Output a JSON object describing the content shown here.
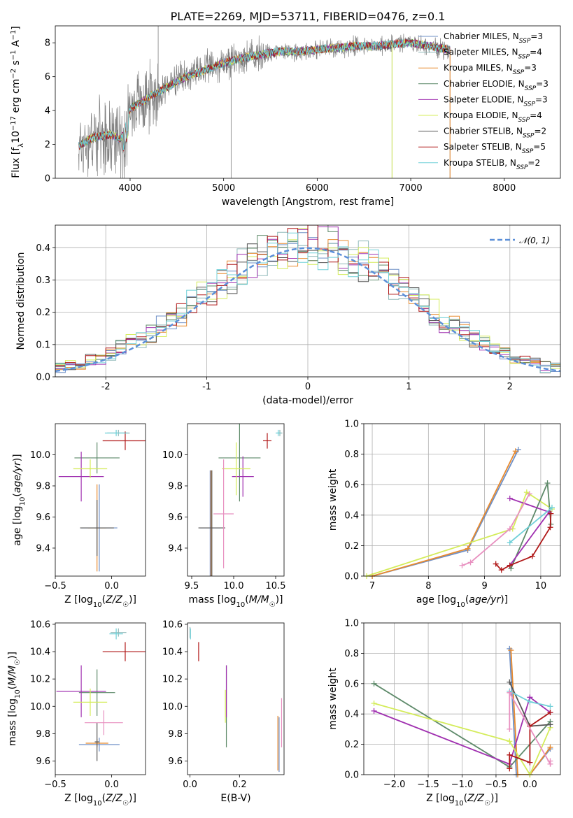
{
  "figure": {
    "title": "PLATE=2269, MJD=53711, FIBERID=0476, z=0.1"
  },
  "models": [
    {
      "name": "Chabrier MILES",
      "nssp": "3",
      "color": "#6e8fc6"
    },
    {
      "name": "Salpeter MILES",
      "nssp": "4",
      "color": "#8fb8b8"
    },
    {
      "name": "Kroupa MILES",
      "nssp": "3",
      "color": "#e88a2e"
    },
    {
      "name": "Chabrier ELODIE",
      "nssp": "3",
      "color": "#5e8a6a"
    },
    {
      "name": "Salpeter ELODIE",
      "nssp": "3",
      "color": "#a030b0"
    },
    {
      "name": "Kroupa ELODIE",
      "nssp": "4",
      "color": "#d4ec5a"
    },
    {
      "name": "Chabrier STELIB",
      "nssp": "2",
      "color": "#555555"
    },
    {
      "name": "Salpeter STELIB",
      "nssp": "5",
      "color": "#b01818"
    },
    {
      "name": "Kroupa STELIB",
      "nssp": "2",
      "color": "#70d0d8"
    }
  ],
  "chart_data": [
    {
      "id": "spectrum",
      "type": "line",
      "xlabel": "wavelength [Angstrom, rest frame]",
      "ylabel": "Flux [f_λ10^-17 erg cm^-2 s^-1 A^-1]",
      "xlim": [
        3200,
        8600
      ],
      "ylim": [
        0,
        9
      ],
      "xticks": [
        4000,
        5000,
        6000,
        7000,
        8000
      ],
      "yticks": [
        0,
        2,
        4,
        6,
        8
      ],
      "data_color": "#808080",
      "continuum": {
        "x": [
          3450,
          3600,
          3800,
          3900,
          3950,
          4000,
          4200,
          4400,
          4600,
          4800,
          5000,
          5200,
          5400,
          5600,
          5800,
          6000,
          6200,
          6400,
          6600,
          6800,
          7000,
          7200,
          7300,
          7400
        ],
        "y": [
          1.9,
          2.4,
          2.6,
          2.3,
          3.0,
          4.1,
          4.8,
          5.4,
          6.0,
          6.4,
          6.8,
          7.1,
          7.3,
          7.5,
          7.5,
          7.6,
          7.7,
          7.8,
          7.8,
          7.9,
          8.0,
          7.8,
          7.7,
          7.6
        ]
      },
      "legend_position": "upper right"
    },
    {
      "id": "residuals",
      "type": "histogram",
      "xlabel": "(data-model)/error",
      "ylabel": "Normed distribution",
      "xlim": [
        -2.5,
        2.5
      ],
      "ylim": [
        0,
        0.47
      ],
      "xticks": [
        -2,
        -1,
        0,
        1,
        2
      ],
      "yticks": [
        0.0,
        0.1,
        0.2,
        0.3,
        0.4
      ],
      "bin_width": 0.1,
      "reference_curve": {
        "name": "𝒩(0, 1)",
        "color": "#5b8fd8",
        "mean": 0,
        "sigma": 1
      },
      "legend_position": "upper right",
      "grid": true
    },
    {
      "id": "age-vs-Z",
      "type": "errorbar",
      "xlabel": "Z [log10(Z/Z☉)]",
      "ylabel": "age [log10(age/yr)]",
      "xlim": [
        -0.5,
        0.3
      ],
      "ylim": [
        9.22,
        10.2
      ],
      "xticks": [
        -0.5,
        0.0
      ],
      "yticks": [
        9.4,
        9.6,
        9.8,
        10.0
      ],
      "points": [
        {
          "model": 0,
          "x": -0.11,
          "y": 9.53,
          "xerr": 0.16,
          "yerr": 0.28
        },
        {
          "model": 1,
          "x": 0.06,
          "y": 10.14,
          "xerr": 0.1,
          "yerr": 0.02
        },
        {
          "model": 2,
          "x": -0.13,
          "y": 9.53,
          "xerr": 0.08,
          "yerr": 0.28
        },
        {
          "model": 3,
          "x": -0.13,
          "y": 9.98,
          "xerr": 0.2,
          "yerr": 0.1
        },
        {
          "model": 4,
          "x": -0.27,
          "y": 9.86,
          "xerr": 0.2,
          "yerr": 0.16
        },
        {
          "model": 5,
          "x": -0.19,
          "y": 9.91,
          "xerr": 0.15,
          "yerr": 0.06
        },
        {
          "model": 6,
          "x": -0.13,
          "y": 9.53,
          "xerr": 0.15,
          "yerr": 0.18
        },
        {
          "model": 7,
          "x": 0.12,
          "y": 10.09,
          "xerr": 0.2,
          "yerr": 0.06
        },
        {
          "model": 8,
          "x": 0.04,
          "y": 10.14,
          "xerr": 0.1,
          "yerr": 0.02
        }
      ]
    },
    {
      "id": "age-vs-mass",
      "type": "errorbar",
      "xlabel": "mass [log10(M/M☉)]",
      "ylabel": "",
      "xlim": [
        9.45,
        10.6
      ],
      "ylim": [
        9.22,
        10.2
      ],
      "xticks": [
        9.5,
        10.0,
        10.5
      ],
      "yticks": [
        9.4,
        9.6,
        9.8,
        10.0
      ],
      "points": [
        {
          "model": 0,
          "x": 9.72,
          "y": 9.53,
          "xerr": 0.12,
          "yerr": 0.37
        },
        {
          "model": 1,
          "x": 10.55,
          "y": 10.14,
          "xerr": 0.03,
          "yerr": 0.02
        },
        {
          "model": 2,
          "x": 9.73,
          "y": 9.53,
          "xerr": 0.0,
          "yerr": 0.37
        },
        {
          "model": 3,
          "x": 10.07,
          "y": 9.98,
          "xerr": 0.25,
          "yerr": 0.28
        },
        {
          "model": 4,
          "x": 10.11,
          "y": 9.86,
          "xerr": 0.13,
          "yerr": 0.13
        },
        {
          "model": 5,
          "x": 10.03,
          "y": 9.91,
          "xerr": 0.17,
          "yerr": 0.17
        },
        {
          "model": 6,
          "x": 9.74,
          "y": 9.53,
          "xerr": 0.16,
          "yerr": 0.37
        },
        {
          "model": 7,
          "x": 10.4,
          "y": 10.09,
          "xerr": 0.05,
          "yerr": 0.05
        },
        {
          "model": 8,
          "x": 10.53,
          "y": 10.14,
          "xerr": 0.03,
          "yerr": 0.02
        },
        {
          "model": 9,
          "x": 9.88,
          "y": 9.62,
          "xerr": 0.12,
          "yerr": 0.35
        }
      ]
    },
    {
      "id": "weight-vs-age",
      "type": "line",
      "xlabel": "age [log10(age/yr)]",
      "ylabel": "mass weight",
      "xlim": [
        6.85,
        10.35
      ],
      "ylim": [
        0.0,
        1.0
      ],
      "xticks": [
        7,
        8,
        9,
        10
      ],
      "yticks": [
        0.0,
        0.2,
        0.4,
        0.6,
        0.8,
        1.0
      ],
      "grid": true,
      "series": [
        {
          "model": 0,
          "x": [
            7.0,
            8.7,
            9.6
          ],
          "y": [
            0.0,
            0.17,
            0.83
          ]
        },
        {
          "model": 2,
          "x": [
            7.0,
            8.7,
            9.55
          ],
          "y": [
            0.0,
            0.18,
            0.82
          ]
        },
        {
          "model": 5,
          "x": [
            6.9,
            9.5,
            9.75,
            10.2
          ],
          "y": [
            0.0,
            0.31,
            0.55,
            0.44
          ]
        },
        {
          "model": 3,
          "x": [
            9.47,
            10.12,
            10.18
          ],
          "y": [
            0.05,
            0.61,
            0.34
          ]
        },
        {
          "model": 4,
          "x": [
            9.45,
            10.15,
            9.45
          ],
          "y": [
            0.07,
            0.42,
            0.51
          ]
        },
        {
          "model": 7,
          "x": [
            9.2,
            9.3,
            9.45,
            9.85,
            10.17,
            10.18
          ],
          "y": [
            0.08,
            0.04,
            0.07,
            0.13,
            0.32,
            0.41
          ]
        },
        {
          "model": 8,
          "x": [
            9.45,
            10.2
          ],
          "y": [
            0.22,
            0.45
          ]
        },
        {
          "model": 9,
          "x": [
            8.6,
            8.75,
            9.45,
            9.8
          ],
          "y": [
            0.07,
            0.09,
            0.31,
            0.54
          ]
        }
      ]
    },
    {
      "id": "mass-vs-Z",
      "type": "errorbar",
      "xlabel": "Z [log10(Z/Z☉)]",
      "ylabel": "mass [log10(M/M☉)]",
      "xlim": [
        -0.5,
        0.3
      ],
      "ylim": [
        9.5,
        10.61
      ],
      "xticks": [
        -0.5,
        0.0
      ],
      "yticks": [
        9.6,
        9.8,
        10.0,
        10.2,
        10.4,
        10.6
      ],
      "points": [
        {
          "model": 0,
          "x": -0.11,
          "y": 9.72,
          "xerr": 0.18,
          "yerr": 0.05
        },
        {
          "model": 1,
          "x": 0.06,
          "y": 10.54,
          "xerr": 0.07,
          "yerr": 0.03
        },
        {
          "model": 2,
          "x": -0.13,
          "y": 9.73,
          "xerr": 0.1,
          "yerr": 0.03
        },
        {
          "model": 3,
          "x": -0.13,
          "y": 10.1,
          "xerr": 0.16,
          "yerr": 0.17
        },
        {
          "model": 4,
          "x": -0.27,
          "y": 10.11,
          "xerr": 0.22,
          "yerr": 0.19
        },
        {
          "model": 5,
          "x": -0.19,
          "y": 10.03,
          "xerr": 0.15,
          "yerr": 0.1
        },
        {
          "model": 6,
          "x": -0.13,
          "y": 9.74,
          "xerr": 0.02,
          "yerr": 0.14
        },
        {
          "model": 7,
          "x": 0.12,
          "y": 10.4,
          "xerr": 0.2,
          "yerr": 0.07
        },
        {
          "model": 8,
          "x": 0.04,
          "y": 10.53,
          "xerr": 0.06,
          "yerr": 0.04
        },
        {
          "model": 9,
          "x": -0.07,
          "y": 9.88,
          "xerr": 0.17,
          "yerr": 0.09
        }
      ]
    },
    {
      "id": "mass-vs-ebv",
      "type": "errorbar",
      "xlabel": "E(B-V)",
      "ylabel": "",
      "xlim": [
        -0.01,
        0.38
      ],
      "ylim": [
        9.5,
        10.61
      ],
      "xticks": [
        0.0,
        0.2
      ],
      "yticks": [
        9.6,
        9.8,
        10.0,
        10.2,
        10.4,
        10.6
      ],
      "points": [
        {
          "model": 0,
          "x": 0.36,
          "y": 9.72,
          "xerr": 0,
          "yerr": 0.2
        },
        {
          "model": 1,
          "x": 0.0,
          "y": 10.54,
          "xerr": 0,
          "yerr": 0.04
        },
        {
          "model": 2,
          "x": 0.355,
          "y": 9.73,
          "xerr": 0,
          "yerr": 0.2
        },
        {
          "model": 3,
          "x": 0.147,
          "y": 10.0,
          "xerr": 0,
          "yerr": 0.3
        },
        {
          "model": 4,
          "x": 0.147,
          "y": 10.11,
          "xerr": 0,
          "yerr": 0.19
        },
        {
          "model": 5,
          "x": 0.143,
          "y": 10.0,
          "xerr": 0,
          "yerr": 0.12
        },
        {
          "model": 7,
          "x": 0.035,
          "y": 10.4,
          "xerr": 0,
          "yerr": 0.07
        },
        {
          "model": 8,
          "x": 0.002,
          "y": 10.53,
          "xerr": 0,
          "yerr": 0.04
        },
        {
          "model": 9,
          "x": 0.37,
          "y": 9.88,
          "xerr": 0,
          "yerr": 0.18
        }
      ]
    },
    {
      "id": "weight-vs-Z",
      "type": "line",
      "xlabel": "Z [log10(Z/Z☉)]",
      "ylabel": "mass weight",
      "xlim": [
        -2.45,
        0.45
      ],
      "ylim": [
        0.0,
        1.0
      ],
      "xticks": [
        -2.0,
        -1.5,
        -1.0,
        -0.5,
        0.0
      ],
      "yticks": [
        0.0,
        0.2,
        0.4,
        0.6,
        0.8,
        1.0
      ],
      "grid": true,
      "series": [
        {
          "model": 0,
          "x": [
            -0.3,
            -0.2,
            -0.0,
            0.3
          ],
          "y": [
            0.83,
            0.0,
            0.0,
            0.17
          ]
        },
        {
          "model": 2,
          "x": [
            -0.28,
            -0.18,
            0.0,
            0.3
          ],
          "y": [
            0.82,
            0.0,
            0.0,
            0.18
          ]
        },
        {
          "model": 3,
          "x": [
            -2.3,
            -0.3,
            0.3
          ],
          "y": [
            0.6,
            0.05,
            0.35
          ]
        },
        {
          "model": 4,
          "x": [
            -2.3,
            -0.3,
            -0.0,
            0.3
          ],
          "y": [
            0.42,
            0.07,
            0.51,
            0.41
          ]
        },
        {
          "model": 5,
          "x": [
            -2.3,
            -0.3,
            0.0,
            0.3
          ],
          "y": [
            0.47,
            0.22,
            0.0,
            0.31
          ]
        },
        {
          "model": 6,
          "x": [
            -0.3,
            0.0,
            0.3
          ],
          "y": [
            0.61,
            0.32,
            0.33
          ]
        },
        {
          "model": 7,
          "x": [
            -0.3,
            -0.3,
            0.0,
            0.0,
            0.3
          ],
          "y": [
            0.04,
            0.13,
            0.08,
            0.32,
            0.41
          ]
        },
        {
          "model": 8,
          "x": [
            -0.3,
            0.0,
            0.3
          ],
          "y": [
            0.55,
            0.48,
            0.45
          ]
        },
        {
          "model": 9,
          "x": [
            -0.3,
            -0.3,
            0.3,
            0.3
          ],
          "y": [
            0.3,
            0.54,
            0.07,
            0.09
          ]
        }
      ]
    }
  ],
  "extra_colors": {
    "pink": "#e890c0"
  }
}
